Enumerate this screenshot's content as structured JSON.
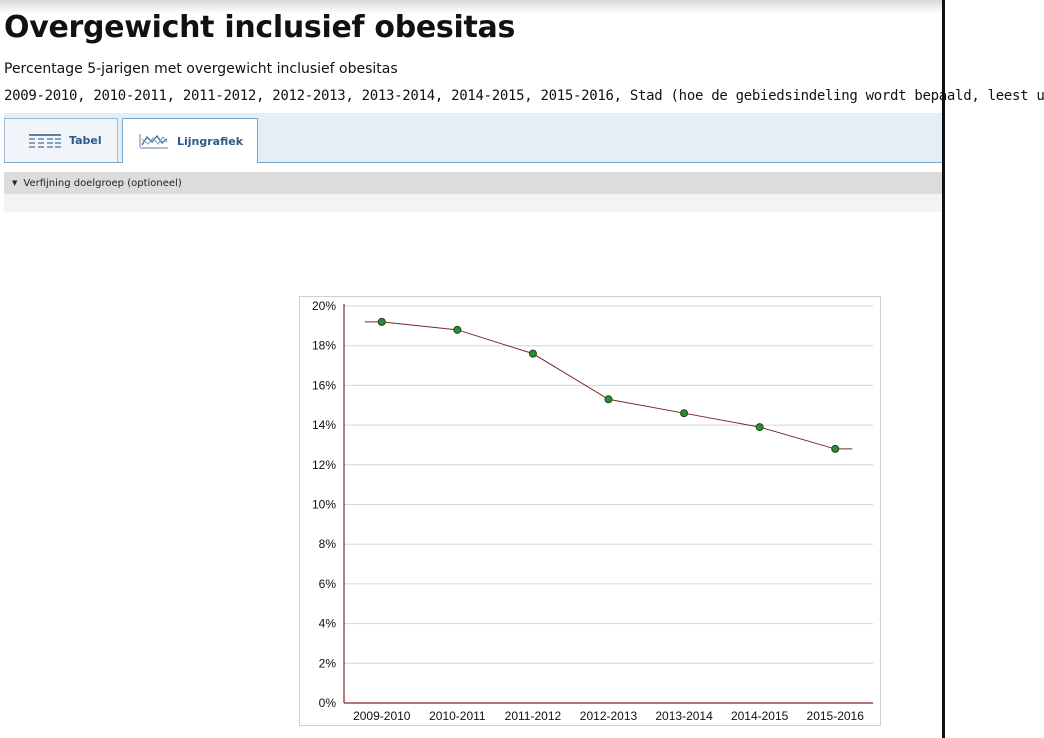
{
  "header": {
    "title": "Overgewicht inclusief obesitas",
    "subtitle": "Percentage 5-jarigen met overgewicht inclusief obesitas",
    "periods": "2009-2010, 2010-2011, 2011-2012, 2012-2013, 2013-2014, 2014-2015, 2015-2016, Stad (hoe de gebiedsindeling wordt bepaald, leest u"
  },
  "tabs": [
    {
      "label": "Tabel",
      "icon": "table-icon",
      "active": false
    },
    {
      "label": "Lijngrafiek",
      "icon": "line-chart-icon",
      "active": true
    }
  ],
  "refine": {
    "label": "Verfijning doelgroep (optioneel)",
    "icon": "caret-down-icon"
  },
  "colors": {
    "line": "#7a2a2a",
    "point_fill": "#2e8b3a",
    "point_stroke": "#0f4a18",
    "grid": "#d6d6d6",
    "axis": "#7a2a2a",
    "tab_text": "#2a5a8a",
    "tab_bar": "#e4eef6"
  },
  "chart_data": {
    "type": "line",
    "x": [
      "2009-2010",
      "2010-2011",
      "2011-2012",
      "2012-2013",
      "2013-2014",
      "2014-2015",
      "2015-2016"
    ],
    "series": [
      {
        "values": [
          19.2,
          18.8,
          17.6,
          15.3,
          14.6,
          13.9,
          12.8
        ]
      }
    ],
    "ylim": [
      0,
      20
    ],
    "yticks": [
      "0%",
      "2%",
      "4%",
      "6%",
      "8%",
      "10%",
      "12%",
      "14%",
      "16%",
      "18%",
      "20%"
    ],
    "grid": true,
    "legend": "none"
  }
}
